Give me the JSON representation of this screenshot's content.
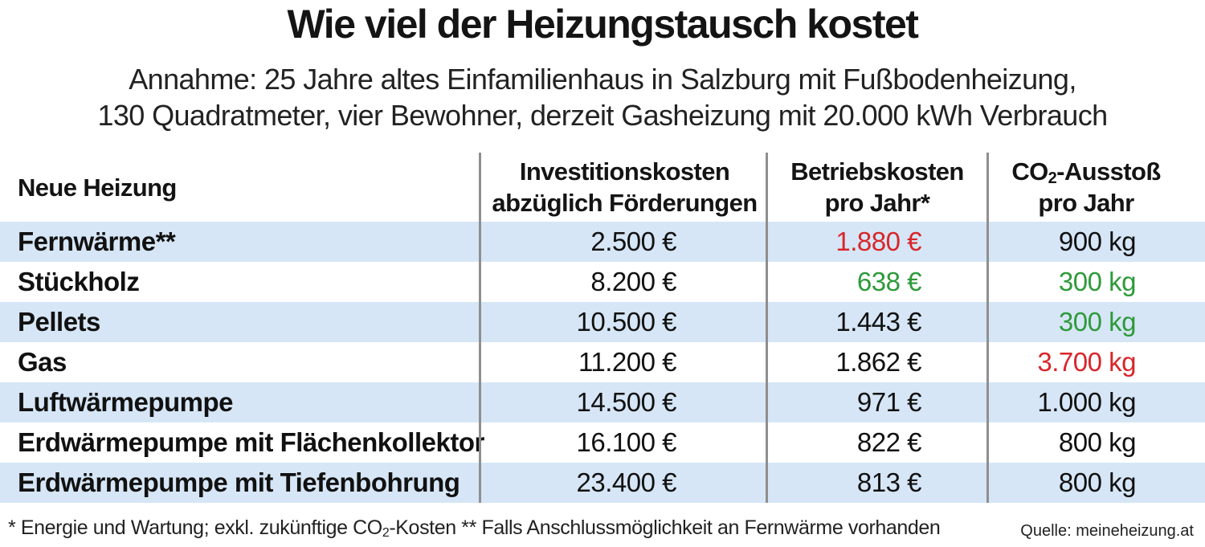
{
  "title": "Wie viel der Heizungstausch kostet",
  "subtitle_line1": "Annahme: 25 Jahre altes Einfamilienhaus in Salzburg mit Fußbodenheizung,",
  "subtitle_line2": "130 Quadratmeter, vier Bewohner, derzeit Gasheizung mit 20.000 kWh Verbrauch",
  "colors": {
    "row_shade": "#d6e6f6",
    "red": "#d8262b",
    "green": "#2e9a3a",
    "text": "#141414",
    "divider": "#8f8f8f"
  },
  "chart_data": {
    "type": "table",
    "columns": [
      {
        "label_line1": "Neue Heizung",
        "label_line2": ""
      },
      {
        "label_line1": "Investitionskosten",
        "label_line2": "abzüglich Förderungen"
      },
      {
        "label_line1": "Betriebskosten",
        "label_line2": "pro Jahr*"
      },
      {
        "label_line1_prefix": "CO",
        "label_line1_sub": "2",
        "label_line1_suffix": "-Ausstoß",
        "label_line2": "pro Jahr"
      }
    ],
    "rows": [
      {
        "name": "Fernwärme**",
        "invest": "2.500 €",
        "operating": "1.880 €",
        "co2": "900 kg",
        "operating_color": "red",
        "co2_color": ""
      },
      {
        "name": "Stückholz",
        "invest": "8.200 €",
        "operating": "638 €",
        "co2": "300 kg",
        "operating_color": "green",
        "co2_color": "green"
      },
      {
        "name": "Pellets",
        "invest": "10.500 €",
        "operating": "1.443 €",
        "co2": "300 kg",
        "operating_color": "",
        "co2_color": "green"
      },
      {
        "name": "Gas",
        "invest": "11.200 €",
        "operating": "1.862 €",
        "co2": "3.700 kg",
        "operating_color": "",
        "co2_color": "red"
      },
      {
        "name": "Luftwärmepumpe",
        "invest": "14.500 €",
        "operating": "971 €",
        "co2": "1.000 kg",
        "operating_color": "",
        "co2_color": ""
      },
      {
        "name": "Erdwärmepumpe mit Flächenkollektor",
        "invest": "16.100 €",
        "operating": "822 €",
        "co2": "800 kg",
        "operating_color": "",
        "co2_color": ""
      },
      {
        "name": "Erdwärmepumpe mit Tiefenbohrung",
        "invest": "23.400 €",
        "operating": "813 €",
        "co2": "800 kg",
        "operating_color": "",
        "co2_color": ""
      }
    ]
  },
  "footnote": {
    "part1": "* Energie und Wartung; exkl. zukünftige CO",
    "sub": "2",
    "part2": "-Kosten ** Falls Anschlussmöglichkeit an Fernwärme vorhanden"
  },
  "source": "Quelle: meineheizung.at"
}
